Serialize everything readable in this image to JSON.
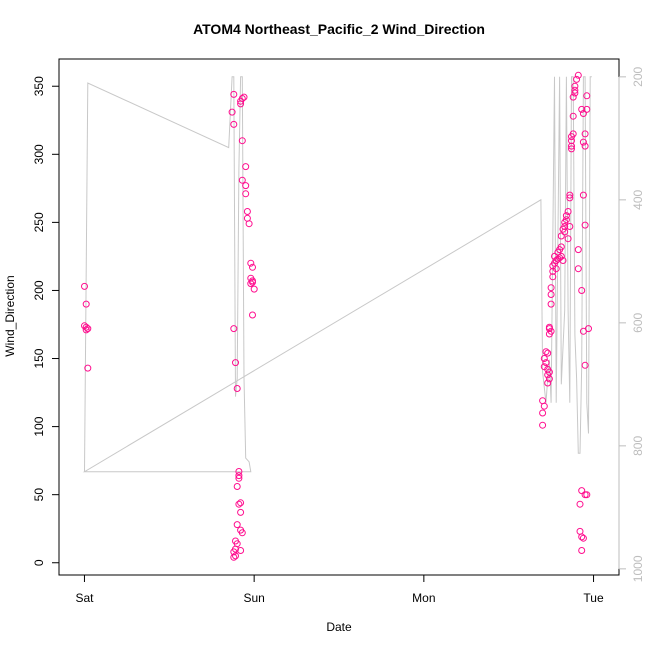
{
  "chart_data": {
    "type": "scatter",
    "title": "ATOM4 Northeast_Pacific_2 Wind_Direction",
    "xlabel": "Date",
    "ylabel": "Wind_Direction",
    "x_unit": "days",
    "x_ticks": [
      {
        "value": 0,
        "label": "Sat"
      },
      {
        "value": 1,
        "label": "Sun"
      },
      {
        "value": 2,
        "label": "Mon"
      },
      {
        "value": 3,
        "label": "Tue"
      }
    ],
    "xlim": [
      -0.15,
      3.15
    ],
    "ylim": [
      -9,
      370
    ],
    "y_ticks": [
      0,
      50,
      100,
      150,
      200,
      250,
      300,
      350
    ],
    "y2lim": [
      1010,
      171
    ],
    "y2_ticks": [
      200,
      400,
      600,
      800,
      1000
    ],
    "grid": false,
    "colors": {
      "points": "#ff0f8f",
      "line": "#c8c8c8",
      "axis": "#000000",
      "axis2": "#bdbdbd"
    },
    "series": [
      {
        "kind": "points",
        "points": [
          [
            0.0,
            203
          ],
          [
            0.01,
            190
          ],
          [
            0.0,
            174
          ],
          [
            0.01,
            173
          ],
          [
            0.02,
            172
          ],
          [
            0.01,
            171
          ],
          [
            0.02,
            143
          ],
          [
            0.88,
            344
          ],
          [
            0.87,
            331
          ],
          [
            0.88,
            322
          ],
          [
            0.88,
            172
          ],
          [
            0.89,
            147
          ],
          [
            0.9,
            128
          ],
          [
            0.92,
            339
          ],
          [
            0.93,
            341
          ],
          [
            0.94,
            342
          ],
          [
            0.92,
            337
          ],
          [
            0.93,
            310
          ],
          [
            0.95,
            291
          ],
          [
            0.93,
            281
          ],
          [
            0.95,
            277
          ],
          [
            0.95,
            271
          ],
          [
            0.96,
            258
          ],
          [
            0.96,
            253
          ],
          [
            0.97,
            249
          ],
          [
            0.98,
            220
          ],
          [
            0.99,
            217
          ],
          [
            0.98,
            209
          ],
          [
            0.99,
            207
          ],
          [
            0.99,
            206
          ],
          [
            0.98,
            205
          ],
          [
            1.0,
            201
          ],
          [
            0.99,
            182
          ],
          [
            0.91,
            67
          ],
          [
            0.91,
            64
          ],
          [
            0.91,
            62
          ],
          [
            0.9,
            56
          ],
          [
            0.92,
            44
          ],
          [
            0.91,
            43
          ],
          [
            0.92,
            37
          ],
          [
            0.9,
            28
          ],
          [
            0.93,
            22
          ],
          [
            0.92,
            24
          ],
          [
            0.89,
            16
          ],
          [
            0.9,
            14
          ],
          [
            0.89,
            10
          ],
          [
            0.88,
            8
          ],
          [
            0.89,
            5
          ],
          [
            0.88,
            4
          ],
          [
            0.92,
            9
          ],
          [
            2.7,
            101
          ],
          [
            2.7,
            110
          ],
          [
            2.71,
            115
          ],
          [
            2.7,
            119
          ],
          [
            2.71,
            144
          ],
          [
            2.72,
            147
          ],
          [
            2.71,
            150
          ],
          [
            2.72,
            155
          ],
          [
            2.73,
            154
          ],
          [
            2.73,
            138
          ],
          [
            2.73,
            142
          ],
          [
            2.74,
            140
          ],
          [
            2.74,
            135
          ],
          [
            2.73,
            132
          ],
          [
            2.74,
            172
          ],
          [
            2.74,
            168
          ],
          [
            2.75,
            170
          ],
          [
            2.74,
            173
          ],
          [
            2.75,
            190
          ],
          [
            2.75,
            197
          ],
          [
            2.75,
            202
          ],
          [
            2.76,
            210
          ],
          [
            2.76,
            214
          ],
          [
            2.76,
            218
          ],
          [
            2.77,
            220
          ],
          [
            2.78,
            222
          ],
          [
            2.77,
            225
          ],
          [
            2.78,
            216
          ],
          [
            2.79,
            223
          ],
          [
            2.79,
            228
          ],
          [
            2.8,
            224
          ],
          [
            2.8,
            230
          ],
          [
            2.81,
            225
          ],
          [
            2.81,
            232
          ],
          [
            2.81,
            240
          ],
          [
            2.82,
            245
          ],
          [
            2.83,
            247
          ],
          [
            2.83,
            250
          ],
          [
            2.82,
            222
          ],
          [
            2.83,
            243
          ],
          [
            2.84,
            252
          ],
          [
            2.84,
            255
          ],
          [
            2.85,
            258
          ],
          [
            2.86,
            247
          ],
          [
            2.85,
            238
          ],
          [
            2.86,
            268
          ],
          [
            2.86,
            270
          ],
          [
            2.87,
            304
          ],
          [
            2.87,
            306
          ],
          [
            2.87,
            310
          ],
          [
            2.87,
            313
          ],
          [
            2.88,
            315
          ],
          [
            2.88,
            328
          ],
          [
            2.88,
            342
          ],
          [
            2.89,
            345
          ],
          [
            2.89,
            350
          ],
          [
            2.9,
            355
          ],
          [
            2.91,
            358
          ],
          [
            2.89,
            347
          ],
          [
            2.91,
            230
          ],
          [
            2.91,
            216
          ],
          [
            2.93,
            200
          ],
          [
            2.94,
            170
          ],
          [
            2.95,
            145
          ],
          [
            2.93,
            333
          ],
          [
            2.94,
            330
          ],
          [
            2.95,
            315
          ],
          [
            2.94,
            309
          ],
          [
            2.95,
            306
          ],
          [
            2.94,
            270
          ],
          [
            2.95,
            248
          ],
          [
            2.96,
            343
          ],
          [
            2.96,
            333
          ],
          [
            2.93,
            53
          ],
          [
            2.95,
            50
          ],
          [
            2.96,
            50
          ],
          [
            2.92,
            43
          ],
          [
            2.92,
            23
          ],
          [
            2.93,
            19
          ],
          [
            2.94,
            18
          ],
          [
            2.93,
            9
          ],
          [
            2.97,
            172
          ]
        ]
      },
      {
        "kind": "line",
        "axis": "y2",
        "points": [
          [
            0.0,
            842
          ],
          [
            0.02,
            210
          ],
          [
            0.85,
            315
          ],
          [
            0.87,
            200
          ],
          [
            0.88,
            200
          ],
          [
            0.89,
            720
          ],
          [
            0.9,
            690
          ],
          [
            0.91,
            350
          ],
          [
            0.92,
            200
          ],
          [
            0.93,
            200
          ],
          [
            0.94,
            690
          ],
          [
            0.95,
            820
          ],
          [
            0.97,
            826
          ],
          [
            0.98,
            842
          ],
          [
            0.0,
            842
          ],
          [
            2.69,
            400
          ],
          [
            2.7,
            680
          ],
          [
            2.72,
            730
          ],
          [
            2.73,
            690
          ],
          [
            2.74,
            660
          ],
          [
            2.75,
            730
          ],
          [
            2.77,
            200
          ],
          [
            2.78,
            730
          ],
          [
            2.8,
            200
          ],
          [
            2.81,
            700
          ],
          [
            2.83,
            580
          ],
          [
            2.84,
            200
          ],
          [
            2.85,
            580
          ],
          [
            2.86,
            730
          ],
          [
            2.87,
            200
          ],
          [
            2.88,
            200
          ],
          [
            2.89,
            620
          ],
          [
            2.9,
            690
          ],
          [
            2.91,
            812
          ],
          [
            2.92,
            812
          ],
          [
            2.93,
            670
          ],
          [
            2.94,
            200
          ],
          [
            2.95,
            200
          ],
          [
            2.96,
            730
          ],
          [
            2.97,
            780
          ],
          [
            2.98,
            200
          ],
          [
            2.99,
            200
          ]
        ]
      }
    ]
  }
}
